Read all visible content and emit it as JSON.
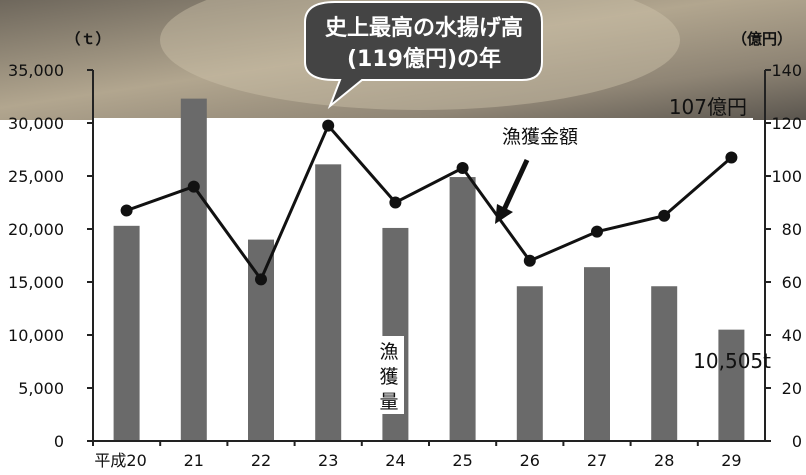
{
  "chart_data": {
    "type": "bar+line",
    "categories": [
      "平成20",
      "21",
      "22",
      "23",
      "24",
      "25",
      "26",
      "27",
      "28",
      "29"
    ],
    "series": [
      {
        "name": "漁獲量",
        "axis": "left",
        "type": "bar",
        "values": [
          20300,
          32300,
          19000,
          26100,
          20100,
          24900,
          14600,
          16400,
          14600,
          10505
        ]
      },
      {
        "name": "漁獲金額",
        "axis": "right",
        "type": "line",
        "values": [
          87,
          96,
          61,
          119,
          90,
          103,
          68,
          79,
          85,
          107
        ]
      }
    ],
    "left_axis": {
      "unit_label": "（ｔ）",
      "ylim": [
        0,
        35000
      ],
      "ticks": [
        "0",
        "5,000",
        "10,000",
        "15,000",
        "20,000",
        "25,000",
        "30,000",
        "35,000"
      ]
    },
    "right_axis": {
      "unit_label": "（億円）",
      "ylim": [
        0,
        140
      ],
      "ticks": [
        "0",
        "20",
        "40",
        "60",
        "80",
        "100",
        "120",
        "140"
      ]
    },
    "annotations": {
      "callout_line1": "史上最高の水揚げ高",
      "callout_line2": "(119億円)の年",
      "line_series_label": "漁獲金額",
      "bar_series_label_chars": [
        "漁",
        "獲",
        "量"
      ],
      "last_bar_value_label": "10,505t",
      "last_line_value_label": "107億円"
    },
    "grid": false,
    "background_photo": true,
    "colors": {
      "bar": "#6a6a6a",
      "line": "#111111",
      "marker": "#111111",
      "axis": "#222222",
      "callout_bg": "#444444",
      "callout_text": "#ffffff"
    }
  }
}
